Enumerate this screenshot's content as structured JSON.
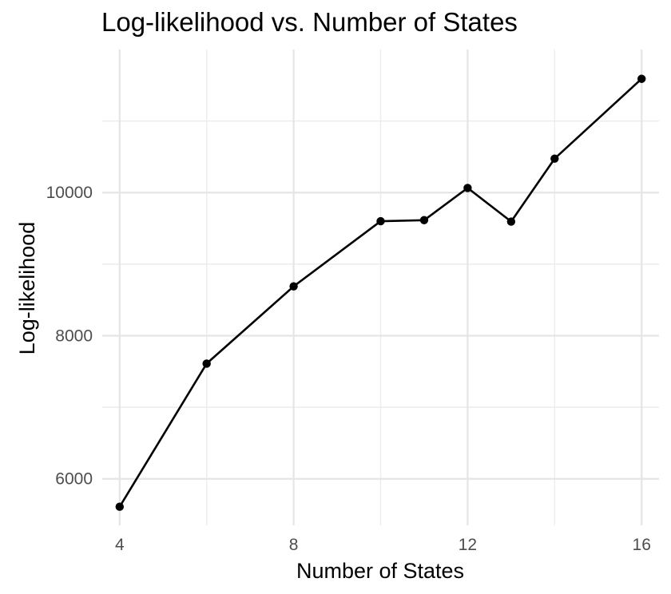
{
  "chart_data": {
    "type": "line",
    "title": "Log-likelihood vs. Number of States",
    "xlabel": "Number of States",
    "ylabel": "Log-likelihood",
    "x": [
      4,
      6,
      8,
      10,
      11,
      12,
      13,
      14,
      16
    ],
    "y": [
      5610,
      7610,
      8690,
      9600,
      9615,
      10065,
      9595,
      10475,
      11590
    ],
    "xlim": [
      3.6,
      16.4
    ],
    "ylim": [
      5350,
      12000
    ],
    "x_ticks": [
      4,
      8,
      12,
      16
    ],
    "x_tick_labels": [
      "4",
      "8",
      "12",
      "16"
    ],
    "x_minor_ticks": [
      6,
      10,
      14
    ],
    "y_ticks": [
      6000,
      8000,
      10000
    ],
    "y_tick_labels": [
      "6000",
      "8000",
      "10000"
    ],
    "y_minor_ticks": [
      7000,
      9000,
      11000
    ],
    "grid": true,
    "legend": "none",
    "line_color": "#000000",
    "point_color": "#000000",
    "grid_color": "#e5e5e5",
    "background": "#ffffff"
  }
}
